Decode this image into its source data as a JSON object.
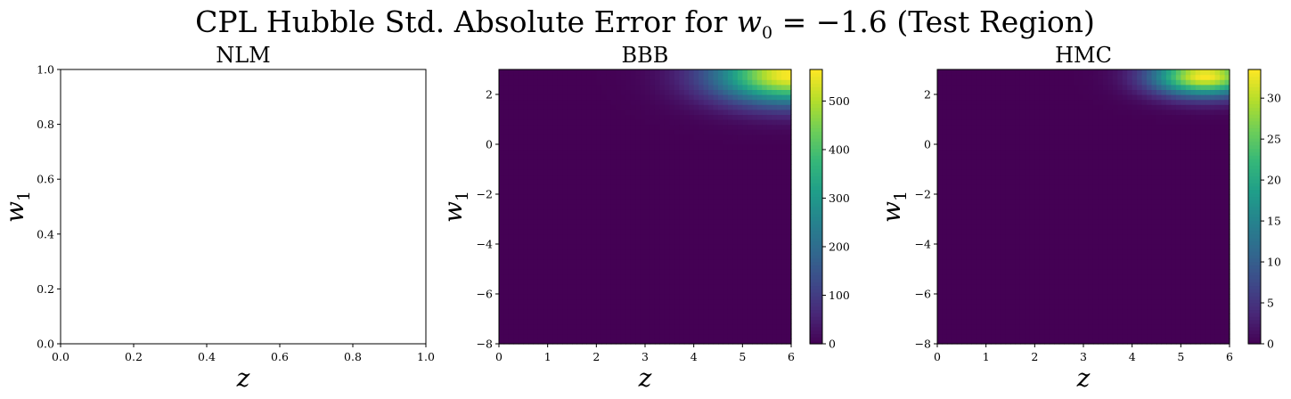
{
  "figure": {
    "title_prefix": "CPL Hubble Std. Absolute Error for ",
    "title_var": "w",
    "title_var_sub": "0",
    "title_eq": " = −1.6 (Test Region)"
  },
  "colors": {
    "viridis": [
      "#440154",
      "#482878",
      "#3e4989",
      "#31688e",
      "#26828e",
      "#1f9e89",
      "#35b779",
      "#6ece58",
      "#b5de2b",
      "#fde725"
    ]
  },
  "chart_data": [
    {
      "type": "heatmap",
      "title": "NLM",
      "xlabel": "z",
      "ylabel_var": "w",
      "ylabel_sub": "1",
      "empty": true,
      "xlim": [
        0,
        1.0
      ],
      "ylim": [
        0,
        1.0
      ],
      "xticks": [
        "0.0",
        "0.2",
        "0.4",
        "0.6",
        "0.8",
        "1.0"
      ],
      "yticks": [
        "0.0",
        "0.2",
        "0.4",
        "0.6",
        "0.8",
        "1.0"
      ]
    },
    {
      "type": "heatmap",
      "title": "BBB",
      "xlabel": "z",
      "ylabel_var": "w",
      "ylabel_sub": "1",
      "empty": false,
      "xlim": [
        0,
        6
      ],
      "ylim": [
        -8,
        3
      ],
      "xticks": [
        "0",
        "1",
        "2",
        "3",
        "4",
        "5",
        "6"
      ],
      "yticks": [
        "−8",
        "−6",
        "−4",
        "−2",
        "0",
        "2"
      ],
      "colorbar": {
        "min": 0,
        "max": 565,
        "ticks": [
          "0",
          "100",
          "200",
          "300",
          "400",
          "500"
        ]
      },
      "peak": {
        "z": 6.0,
        "w1": 2.8,
        "value": 565,
        "spread_z": 1.1,
        "spread_w1": 0.8
      }
    },
    {
      "type": "heatmap",
      "title": "HMC",
      "xlabel": "z",
      "ylabel_var": "w",
      "ylabel_sub": "1",
      "empty": false,
      "xlim": [
        0,
        6
      ],
      "ylim": [
        -8,
        3
      ],
      "xticks": [
        "0",
        "1",
        "2",
        "3",
        "4",
        "5",
        "6"
      ],
      "yticks": [
        "−8",
        "−6",
        "−4",
        "−2",
        "0",
        "2"
      ],
      "colorbar": {
        "min": 0,
        "max": 33.5,
        "ticks": [
          "0",
          "5",
          "10",
          "15",
          "20",
          "25",
          "30"
        ]
      },
      "peak": {
        "z": 5.5,
        "w1": 2.75,
        "value": 33.5,
        "spread_z": 0.75,
        "spread_w1": 0.55
      }
    }
  ]
}
